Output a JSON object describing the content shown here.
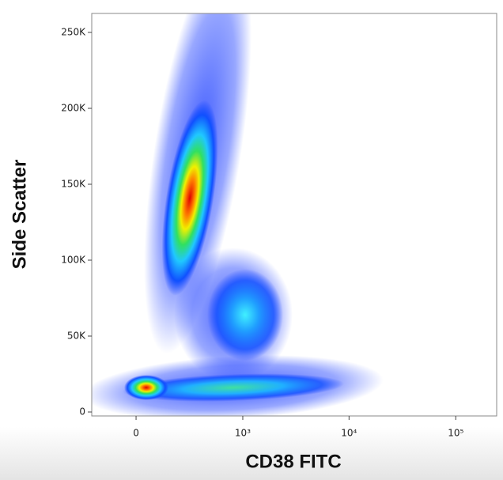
{
  "chart_data": {
    "type": "density",
    "x_label": "CD38 FITC",
    "y_label": "Side Scatter",
    "xscale": "asinh",
    "xlim": [
      -224,
      241800
    ],
    "ylim": [
      -2600,
      262500
    ],
    "xticks": [
      0,
      {
        "value": 1000,
        "label": "10³"
      },
      {
        "value": 10000,
        "label": "10⁴"
      },
      {
        "value": 100000,
        "label": "10⁵"
      }
    ],
    "yticks": [
      0,
      {
        "value": 50000,
        "label": "50K"
      },
      {
        "value": 100000,
        "label": "100K"
      },
      {
        "value": 150000,
        "label": "150K"
      },
      {
        "value": 200000,
        "label": "200K"
      },
      {
        "value": 250000,
        "label": "250K"
      }
    ],
    "x": [
      291,
      1054,
      45
    ],
    "values": [
      141000,
      64000,
      16100
    ]
  }
}
